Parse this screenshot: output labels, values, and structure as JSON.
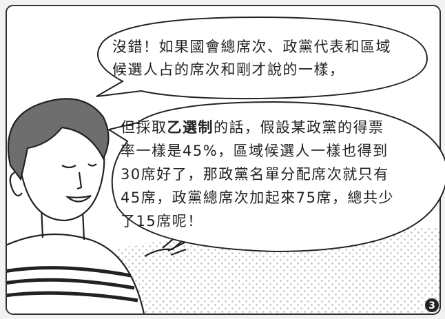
{
  "bubble_1": {
    "lines": [
      "沒錯！如果國會總席次、政黨代表和區域",
      "候選人占的席次和剛才說的一樣，"
    ]
  },
  "bubble_2": {
    "lines": [
      {
        "before": "但採取",
        "emphasis": "乙選制",
        "after": "的話，假設某政黨的得票"
      },
      "率一樣是45%，區域候選人一樣也得到",
      "30席好了，那政黨名單分配席次就只有",
      "45席，政黨總席次加起來75席，總共少",
      "了15席呢！"
    ]
  },
  "page_number": "3"
}
